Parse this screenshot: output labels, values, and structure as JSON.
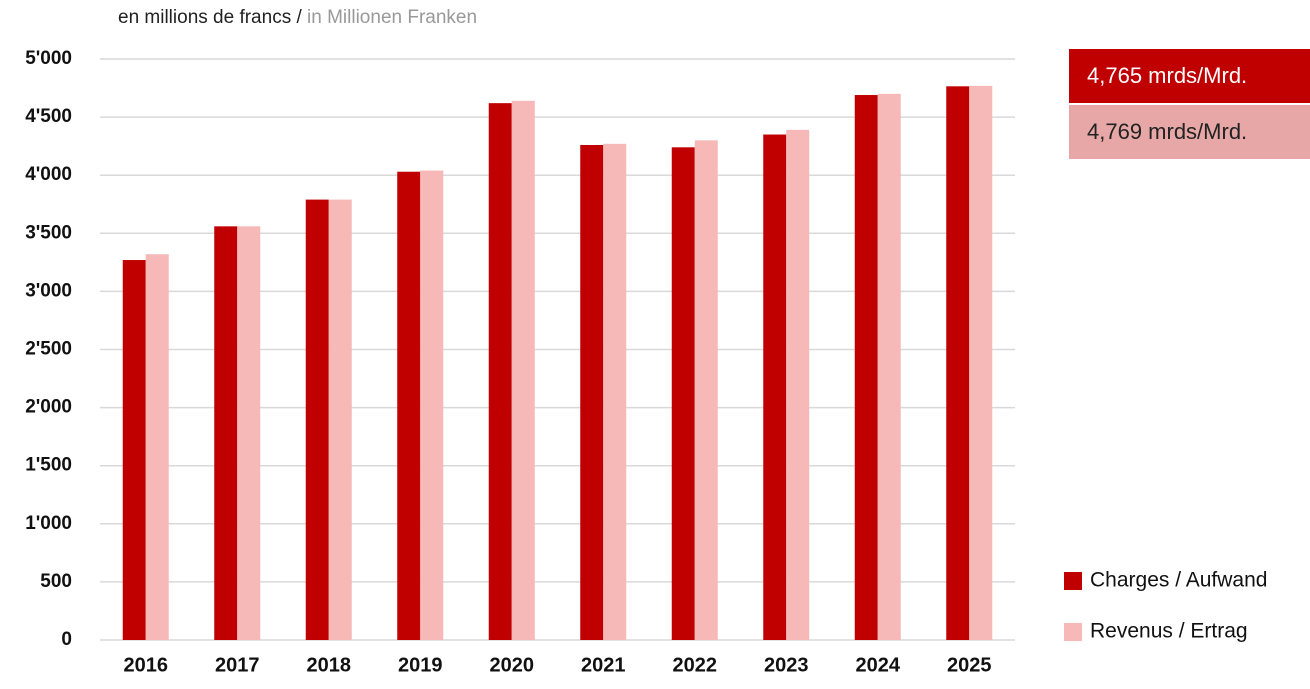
{
  "chart_data": {
    "type": "bar",
    "subtitle": "en millions de francs / ",
    "subtitle_secondary": "in Millionen Franken",
    "categories": [
      "2016",
      "2017",
      "2018",
      "2019",
      "2020",
      "2021",
      "2022",
      "2023",
      "2024",
      "2025"
    ],
    "series": [
      {
        "name": "Charges / Aufwand",
        "color": "#c00000",
        "values": [
          3270,
          3560,
          3790,
          4030,
          4620,
          4260,
          4240,
          4350,
          4690,
          4765
        ]
      },
      {
        "name": "Revenus / Ertrag",
        "color": "#f7b8b8",
        "values": [
          3320,
          3560,
          3790,
          4040,
          4640,
          4270,
          4300,
          4390,
          4700,
          4769
        ]
      }
    ],
    "annotations": [
      "4,765 mrds/Mrd.",
      "4,769 mrds/Mrd."
    ],
    "ylim": [
      0,
      5000
    ],
    "yticks": [
      0,
      500,
      {
        "value": 1000,
        "label": "1'000"
      },
      {
        "value": 1500,
        "label": "1'500"
      },
      {
        "value": 2000,
        "label": "2'000"
      },
      {
        "value": 2500,
        "label": "2'500"
      },
      {
        "value": 3000,
        "label": "3'000"
      },
      {
        "value": 3500,
        "label": "3'500"
      },
      {
        "value": 4000,
        "label": "4'000"
      },
      {
        "value": 4500,
        "label": "4'500"
      },
      {
        "value": 5000,
        "label": "5'000"
      }
    ],
    "grid": true,
    "legend": "lower right"
  }
}
